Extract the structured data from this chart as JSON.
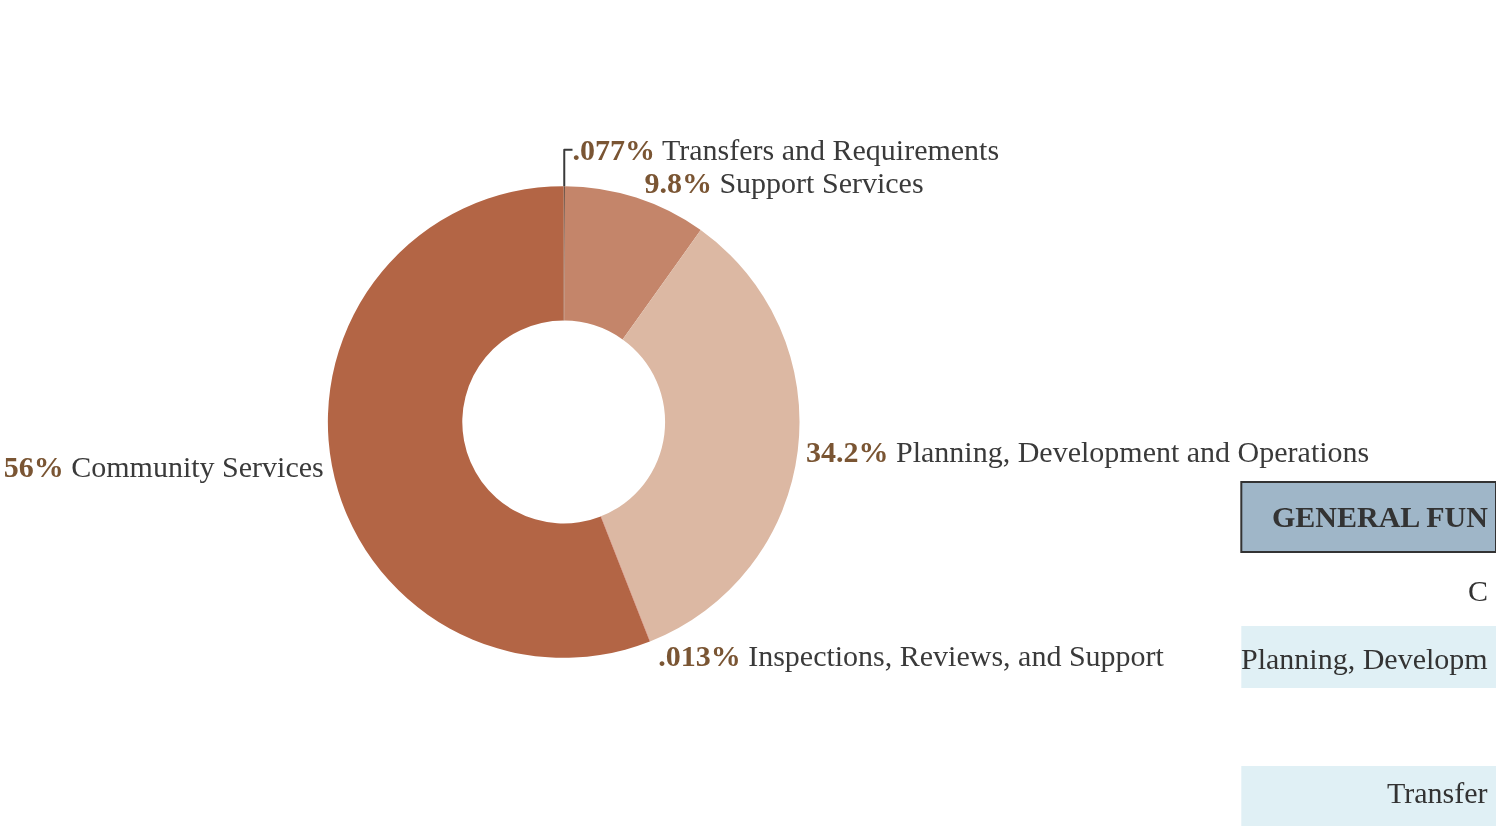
{
  "chart_data": {
    "type": "donut",
    "categories": [
      "Transfers and Requirements",
      "Support Services",
      "Planning, Development and Operations",
      "Inspections, Reviews, and Support",
      "Community Services"
    ],
    "values": [
      0.077,
      9.8,
      34.2,
      0.013,
      56
    ],
    "value_labels": [
      ".077%",
      "9.8%",
      "34.2%",
      ".013%",
      "56%"
    ],
    "colors": [
      "#3a2418",
      "#c4856a",
      "#dcb8a3",
      "#d01818",
      "#b36545"
    ],
    "legend": false,
    "annotations": [
      "GENERAL FUN",
      "C",
      "Planning, Developm",
      "Transfer"
    ]
  }
}
